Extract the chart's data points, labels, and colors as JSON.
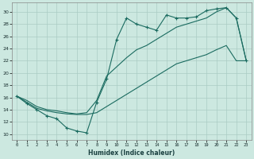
{
  "xlabel": "Humidex (Indice chaleur)",
  "bg_color": "#cce8e0",
  "grid_color": "#aaccc4",
  "line_color": "#1a6b60",
  "xlim": [
    -0.5,
    23.5
  ],
  "ylim": [
    9,
    31.5
  ],
  "xticks": [
    0,
    1,
    2,
    3,
    4,
    5,
    6,
    7,
    8,
    9,
    10,
    11,
    12,
    13,
    14,
    15,
    16,
    17,
    18,
    19,
    20,
    21,
    22,
    23
  ],
  "yticks": [
    10,
    12,
    14,
    16,
    18,
    20,
    22,
    24,
    26,
    28,
    30
  ],
  "line1_x": [
    0,
    1,
    2,
    3,
    4,
    5,
    6,
    7,
    8,
    9,
    10,
    11,
    12,
    13,
    14,
    15,
    16,
    17,
    18,
    19,
    20,
    21,
    22,
    23
  ],
  "line1_y": [
    16.2,
    15.0,
    14.0,
    13.0,
    12.5,
    11.0,
    10.5,
    10.2,
    15.2,
    19.0,
    25.5,
    29.0,
    28.0,
    27.5,
    27.0,
    29.5,
    29.0,
    29.0,
    29.2,
    30.2,
    30.5,
    30.7,
    29.0,
    22.0
  ],
  "line2_x": [
    0,
    1,
    2,
    3,
    4,
    5,
    6,
    7,
    8,
    9,
    10,
    11,
    12,
    13,
    14,
    15,
    16,
    17,
    18,
    19,
    20,
    21,
    22,
    23
  ],
  "line2_y": [
    16.2,
    15.2,
    14.2,
    13.8,
    13.5,
    13.3,
    13.2,
    13.2,
    13.5,
    14.5,
    15.5,
    16.5,
    17.5,
    18.5,
    19.5,
    20.5,
    21.5,
    22.0,
    22.5,
    23.0,
    23.8,
    24.5,
    22.0,
    22.0
  ],
  "line3_x": [
    0,
    1,
    2,
    3,
    4,
    5,
    6,
    7,
    8,
    9,
    10,
    11,
    12,
    13,
    14,
    15,
    16,
    17,
    18,
    19,
    20,
    21,
    22,
    23
  ],
  "line3_y": [
    16.2,
    15.5,
    14.5,
    14.0,
    13.8,
    13.5,
    13.3,
    13.5,
    15.5,
    19.5,
    21.0,
    22.5,
    23.8,
    24.5,
    25.5,
    26.5,
    27.5,
    28.0,
    28.5,
    29.0,
    30.0,
    30.7,
    29.0,
    22.0
  ]
}
